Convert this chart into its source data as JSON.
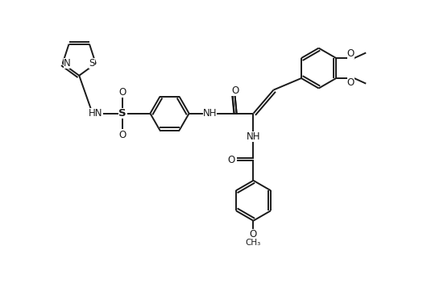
{
  "background_color": "#ffffff",
  "line_color": "#1a1a1a",
  "text_color": "#1a1a1a",
  "lw": 1.4,
  "fs": 8.5,
  "figsize": [
    5.25,
    3.77
  ],
  "dpi": 100,
  "xlim": [
    -0.5,
    10.5
  ],
  "ylim": [
    -2.5,
    6.5
  ]
}
